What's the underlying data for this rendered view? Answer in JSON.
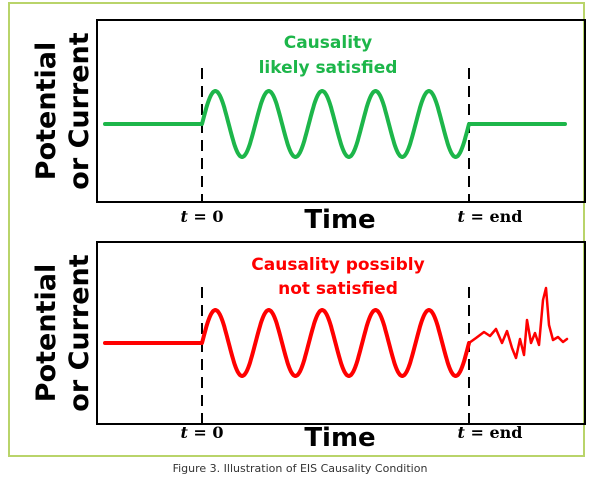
{
  "colors": {
    "border": "#b9d46a",
    "top_signal": "#1db64a",
    "bottom_signal": "#ff0000",
    "axis": "#000000"
  },
  "panels": [
    {
      "ylabel_line1": "Potential",
      "ylabel_line2": "or Current",
      "xlabel": "Time",
      "t0_var": "t",
      "t0_rest": " = 0",
      "tend_var": "t",
      "tend_rest": " = end",
      "note_line1": "Causality",
      "note_line2": "likely satisfied",
      "signal_color": "#1db64a",
      "cycles": 5,
      "after_perturbation": "flat"
    },
    {
      "ylabel_line1": "Potential",
      "ylabel_line2": "or Current",
      "xlabel": "Time",
      "t0_var": "t",
      "t0_rest": " = 0",
      "tend_var": "t",
      "tend_rest": " = end",
      "note_line1": "Causality possibly",
      "note_line2": "not satisfied",
      "signal_color": "#ff0000",
      "cycles": 5,
      "after_perturbation": "noisy"
    }
  ],
  "caption": "Figure 3. Illustration of EIS Causality Condition"
}
